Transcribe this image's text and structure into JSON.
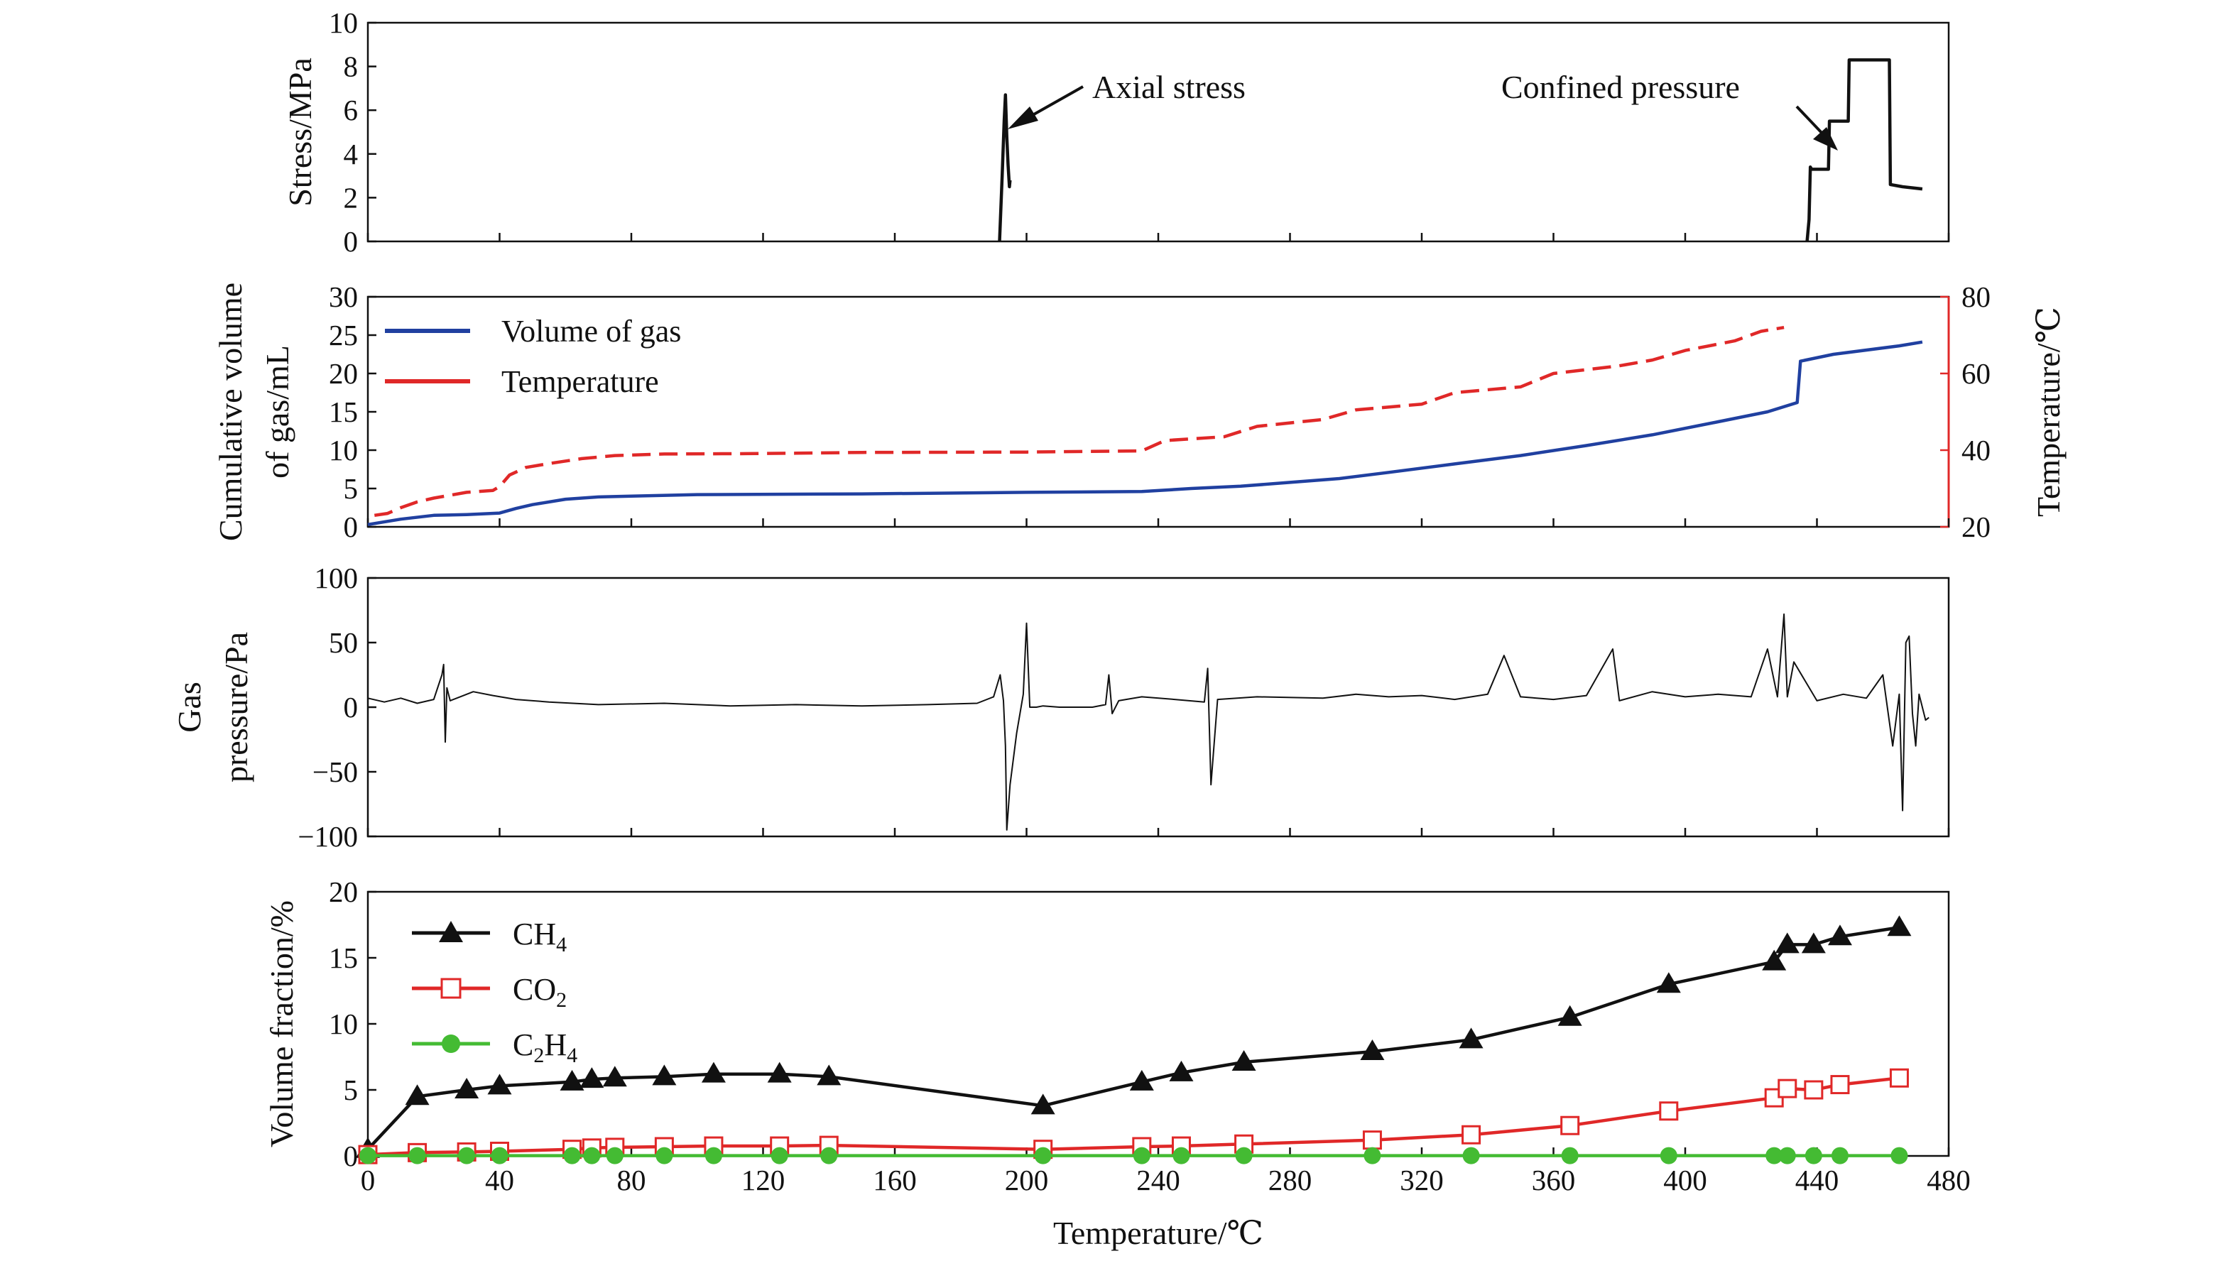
{
  "chart_data": [
    {
      "type": "line",
      "ylabel": "Stress/MPa",
      "xlim": [
        0,
        480
      ],
      "ylim": [
        0,
        10
      ],
      "yticks": [
        0,
        2,
        4,
        6,
        8,
        10
      ],
      "grid": false,
      "annotations": [
        {
          "text": "Axial stress",
          "x": 193,
          "y": 5.0
        },
        {
          "text": "Confined pressure",
          "x": 446,
          "y": 4.0
        }
      ],
      "series": [
        {
          "key": "axial",
          "color": "#111111",
          "x": [
            191.8,
            192.6,
            193.2,
            193.6,
            194.0,
            194.4,
            194.8,
            195.0
          ],
          "y": [
            0,
            3.0,
            5.5,
            6.7,
            4.8,
            3.5,
            2.5,
            2.8
          ]
        },
        {
          "key": "confined",
          "color": "#111111",
          "x": [
            437.0,
            437.6,
            438.0,
            438.4,
            443.5,
            443.8,
            449.5,
            449.8,
            462.0,
            462.3,
            466.0,
            472.0
          ],
          "y": [
            0,
            1.0,
            3.4,
            3.3,
            3.3,
            5.5,
            5.5,
            8.3,
            8.3,
            2.6,
            2.5,
            2.4
          ]
        }
      ]
    },
    {
      "type": "line",
      "ylabel": "Cumulative volume of gas/mL",
      "ylabel_lines": [
        "Cumulative volume",
        "of gas/mL"
      ],
      "y2label": "Temperature/℃",
      "xlim": [
        0,
        480
      ],
      "ylim": [
        0,
        30
      ],
      "yticks": [
        0,
        5,
        10,
        15,
        20,
        25,
        30
      ],
      "y2lim": [
        20,
        80
      ],
      "y2ticks": [
        20,
        40,
        60,
        80
      ],
      "legend": "top-left",
      "grid": false,
      "series": [
        {
          "name": "Volume of gas",
          "color": "#2040a0",
          "axis": "left",
          "style": "solid",
          "x": [
            0,
            10,
            20,
            30,
            40,
            45,
            50,
            60,
            70,
            80,
            100,
            150,
            200,
            235,
            250,
            265,
            280,
            295,
            310,
            330,
            350,
            370,
            390,
            410,
            425,
            434,
            435,
            445,
            465,
            472
          ],
          "y": [
            0.3,
            1.0,
            1.5,
            1.6,
            1.8,
            2.4,
            2.9,
            3.6,
            3.9,
            4.0,
            4.2,
            4.3,
            4.5,
            4.6,
            5.0,
            5.3,
            5.8,
            6.3,
            7.1,
            8.2,
            9.3,
            10.6,
            12.0,
            13.7,
            15.0,
            16.2,
            21.6,
            22.5,
            23.6,
            24.1
          ]
        },
        {
          "name": "Temperature",
          "color": "#e02828",
          "axis": "right",
          "style": "dashed",
          "x": [
            2,
            6,
            10,
            15,
            20,
            30,
            38,
            40,
            43,
            48,
            55,
            65,
            75,
            90,
            115,
            130,
            150,
            200,
            235,
            242,
            260,
            270,
            290,
            300,
            320,
            330,
            350,
            360,
            380,
            390,
            400,
            415,
            423,
            430
          ],
          "y": [
            23,
            23.5,
            25,
            26.5,
            27.5,
            29,
            29.5,
            30.5,
            33.5,
            35.5,
            36.5,
            37.8,
            38.6,
            39.0,
            39.1,
            39.2,
            39.4,
            39.5,
            39.8,
            42.5,
            43.5,
            46.2,
            48.0,
            50.5,
            52.0,
            55.0,
            56.5,
            60.0,
            62.0,
            63.5,
            66.0,
            68.5,
            71.0,
            72.0
          ]
        }
      ]
    },
    {
      "type": "line",
      "ylabel": "Gas pressure/Pa",
      "ylabel_lines": [
        "Gas",
        "pressure/Pa"
      ],
      "xlim": [
        0,
        480
      ],
      "ylim": [
        -100,
        100
      ],
      "yticks": [
        -100,
        -50,
        0,
        50,
        100
      ],
      "grid": false,
      "series": [
        {
          "key": "gas-pressure",
          "color": "#111111",
          "x": [
            0,
            5,
            10,
            15,
            20,
            22.5,
            23,
            23.5,
            24,
            25,
            28,
            32,
            38,
            45,
            55,
            70,
            90,
            110,
            130,
            150,
            170,
            185,
            190,
            192,
            193,
            193.6,
            194,
            195,
            197,
            199,
            200,
            201,
            202,
            203,
            205,
            210,
            215,
            220,
            224,
            225,
            226,
            228,
            235,
            245,
            254,
            255,
            256,
            258,
            270,
            290,
            300,
            310,
            320,
            330,
            340,
            345,
            350,
            360,
            370,
            378,
            380,
            390,
            400,
            410,
            420,
            425,
            428,
            430,
            431,
            433,
            440,
            448,
            455,
            460,
            463,
            465,
            466,
            467,
            468,
            469,
            470,
            471,
            473,
            474
          ],
          "y": [
            7,
            4,
            7,
            3,
            6,
            25,
            33,
            -27,
            15,
            5,
            8,
            12,
            9,
            6,
            4,
            2,
            3,
            1,
            2,
            1,
            2,
            3,
            8,
            25,
            5,
            -30,
            -95,
            -60,
            -20,
            10,
            65,
            0,
            0,
            0,
            1,
            0,
            0,
            0,
            2,
            25,
            -5,
            5,
            8,
            6,
            4,
            30,
            -60,
            6,
            8,
            7,
            10,
            8,
            9,
            6,
            10,
            40,
            8,
            6,
            9,
            45,
            5,
            12,
            8,
            10,
            8,
            45,
            8,
            72,
            8,
            35,
            5,
            10,
            7,
            25,
            -30,
            10,
            -80,
            50,
            55,
            -5,
            -30,
            10,
            -10,
            -8
          ]
        }
      ]
    },
    {
      "type": "line",
      "ylabel": "Volume fraction/%",
      "xlabel": "Temperature/℃",
      "xlim": [
        0,
        480
      ],
      "xticks": [
        0,
        40,
        80,
        120,
        160,
        200,
        240,
        280,
        320,
        360,
        400,
        440,
        480
      ],
      "ylim": [
        0,
        20
      ],
      "yticks": [
        0,
        5,
        10,
        15,
        20
      ],
      "legend": "top-left",
      "grid": false,
      "series": [
        {
          "name": "CH",
          "sub": "4",
          "color": "#111111",
          "marker": "triangle-filled",
          "x": [
            0,
            15,
            30,
            40,
            62,
            68,
            75,
            90,
            105,
            125,
            140,
            205,
            235,
            247,
            266,
            305,
            335,
            365,
            395,
            427,
            431,
            439,
            447,
            465
          ],
          "y": [
            0.5,
            4.5,
            5.0,
            5.3,
            5.6,
            5.8,
            5.9,
            6.0,
            6.2,
            6.2,
            6.0,
            3.8,
            5.6,
            6.3,
            7.1,
            7.9,
            8.8,
            10.5,
            13.0,
            14.7,
            16.0,
            16.0,
            16.6,
            17.3
          ]
        },
        {
          "name": "CO",
          "sub": "2",
          "color": "#e02828",
          "marker": "square-open",
          "x": [
            0,
            15,
            30,
            40,
            62,
            68,
            75,
            90,
            105,
            125,
            140,
            205,
            235,
            247,
            266,
            305,
            335,
            365,
            395,
            427,
            431,
            439,
            447,
            465
          ],
          "y": [
            0.1,
            0.25,
            0.3,
            0.35,
            0.5,
            0.6,
            0.65,
            0.7,
            0.75,
            0.75,
            0.8,
            0.5,
            0.7,
            0.75,
            0.9,
            1.2,
            1.6,
            2.3,
            3.4,
            4.4,
            5.1,
            5.0,
            5.4,
            5.9
          ]
        },
        {
          "name": "C",
          "sub": "2",
          "name2": "H",
          "sub2": "4",
          "color": "#44bb33",
          "marker": "circle-filled",
          "x": [
            0,
            15,
            30,
            40,
            62,
            68,
            75,
            90,
            105,
            125,
            140,
            205,
            235,
            247,
            266,
            305,
            335,
            365,
            395,
            427,
            431,
            439,
            447,
            465
          ],
          "y": [
            0.02,
            0.02,
            0.02,
            0.02,
            0.02,
            0.02,
            0.02,
            0.02,
            0.02,
            0.02,
            0.02,
            0.02,
            0.02,
            0.02,
            0.02,
            0.02,
            0.02,
            0.02,
            0.02,
            0.02,
            0.02,
            0.02,
            0.02,
            0.02
          ]
        }
      ]
    }
  ]
}
